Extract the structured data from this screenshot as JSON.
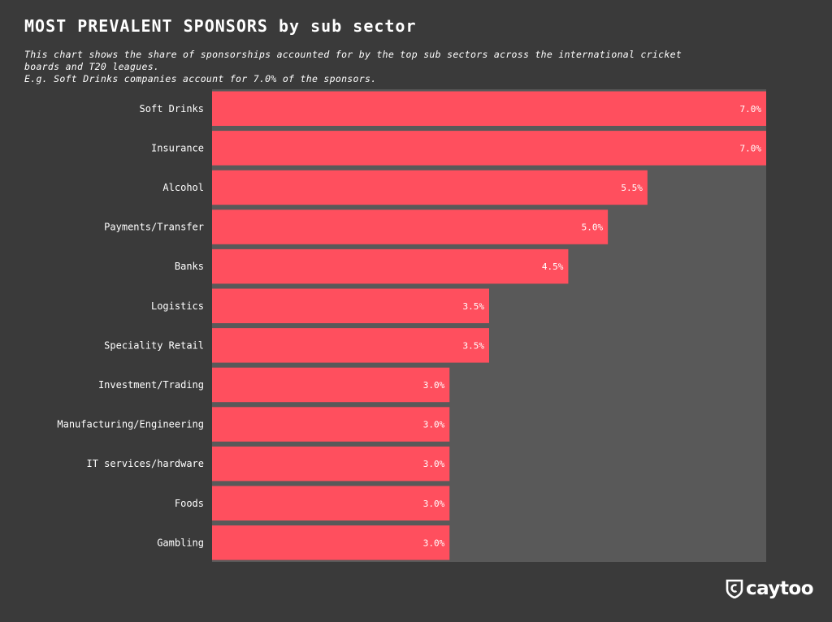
{
  "title": "MOST PREVALENT SPONSORS by sub sector",
  "subtitle_lines": [
    "This chart shows the share of sponsorships accounted for by the top sub sectors across the international cricket",
    "boards and T20 leagues.",
    "E.g. Soft Drinks companies account for 7.0% of the sponsors."
  ],
  "logo_text": "caytoo",
  "colors": {
    "background": "#3a3a3a",
    "panel": "#595959",
    "bar": "#ff4f5e",
    "text": "#ffffff"
  },
  "chart_data": {
    "type": "bar",
    "orientation": "horizontal",
    "categories": [
      "Soft Drinks",
      "Insurance",
      "Alcohol",
      "Payments/Transfer",
      "Banks",
      "Logistics",
      "Speciality Retail",
      "Investment/Trading",
      "Manufacturing/Engineering",
      "IT services/hardware",
      "Foods",
      "Gambling"
    ],
    "values": [
      7.0,
      7.0,
      5.5,
      5.0,
      4.5,
      3.5,
      3.5,
      3.0,
      3.0,
      3.0,
      3.0,
      3.0
    ],
    "value_labels": [
      "7.0%",
      "7.0%",
      "5.5%",
      "5.0%",
      "4.5%",
      "3.5%",
      "3.5%",
      "3.0%",
      "3.0%",
      "3.0%",
      "3.0%",
      "3.0%"
    ],
    "xlim": [
      0,
      7.0
    ],
    "grid": false,
    "legend": "none"
  }
}
